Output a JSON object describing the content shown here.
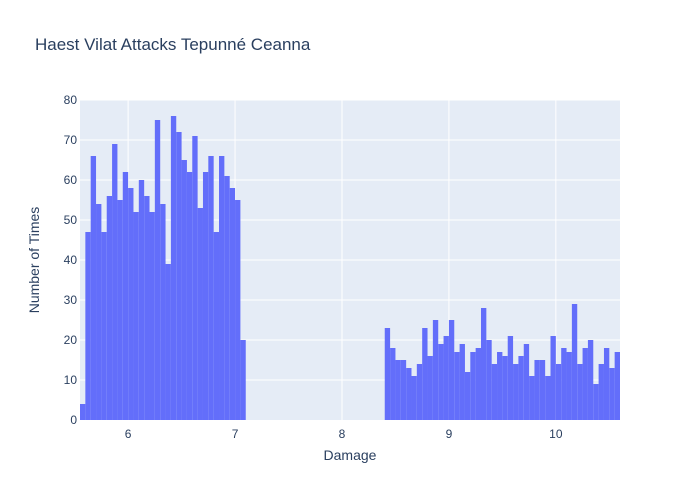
{
  "colors": {
    "plot_background": "#e5ecf6",
    "grid": "#ffffff",
    "bar": "#636efa",
    "text": "#2a3f5f"
  },
  "chart_data": {
    "type": "bar",
    "title": "Haest Vilat Attacks Tepunné Ceanna",
    "xlabel": "Damage",
    "ylabel": "Number of Times",
    "xlim": [
      5.55,
      10.6
    ],
    "ylim": [
      0,
      80
    ],
    "x_ticks": [
      6,
      7,
      8,
      9,
      10
    ],
    "y_ticks": [
      0,
      10,
      20,
      30,
      40,
      50,
      60,
      70,
      80
    ],
    "bin_width": 0.05,
    "grid": true,
    "legend": "none",
    "bin_starts": [
      5.55,
      5.6,
      5.65,
      5.7,
      5.75,
      5.8,
      5.85,
      5.9,
      5.95,
      6.0,
      6.05,
      6.1,
      6.15,
      6.2,
      6.25,
      6.3,
      6.35,
      6.4,
      6.45,
      6.5,
      6.55,
      6.6,
      6.65,
      6.7,
      6.75,
      6.8,
      6.85,
      6.9,
      6.95,
      7.0,
      7.05,
      8.4,
      8.45,
      8.5,
      8.55,
      8.6,
      8.65,
      8.7,
      8.75,
      8.8,
      8.85,
      8.9,
      8.95,
      9.0,
      9.05,
      9.1,
      9.15,
      9.2,
      9.25,
      9.3,
      9.35,
      9.4,
      9.45,
      9.5,
      9.55,
      9.6,
      9.65,
      9.7,
      9.75,
      9.8,
      9.85,
      9.9,
      9.95,
      10.0,
      10.05,
      10.1,
      10.15,
      10.2,
      10.25,
      10.3,
      10.35,
      10.4,
      10.45,
      10.5,
      10.55
    ],
    "values": [
      4,
      47,
      66,
      54,
      47,
      56,
      69,
      55,
      62,
      58,
      52,
      60,
      56,
      52,
      75,
      54,
      39,
      76,
      72,
      65,
      62,
      71,
      53,
      62,
      66,
      47,
      66,
      61,
      58,
      55,
      20,
      23,
      18,
      15,
      15,
      13,
      11,
      14,
      23,
      16,
      25,
      19,
      21,
      25,
      17,
      19,
      12,
      17,
      18,
      28,
      20,
      14,
      17,
      16,
      21,
      14,
      16,
      19,
      11,
      15,
      15,
      11,
      21,
      14,
      18,
      17,
      29,
      14,
      18,
      20,
      9,
      14,
      18,
      13,
      17
    ]
  }
}
